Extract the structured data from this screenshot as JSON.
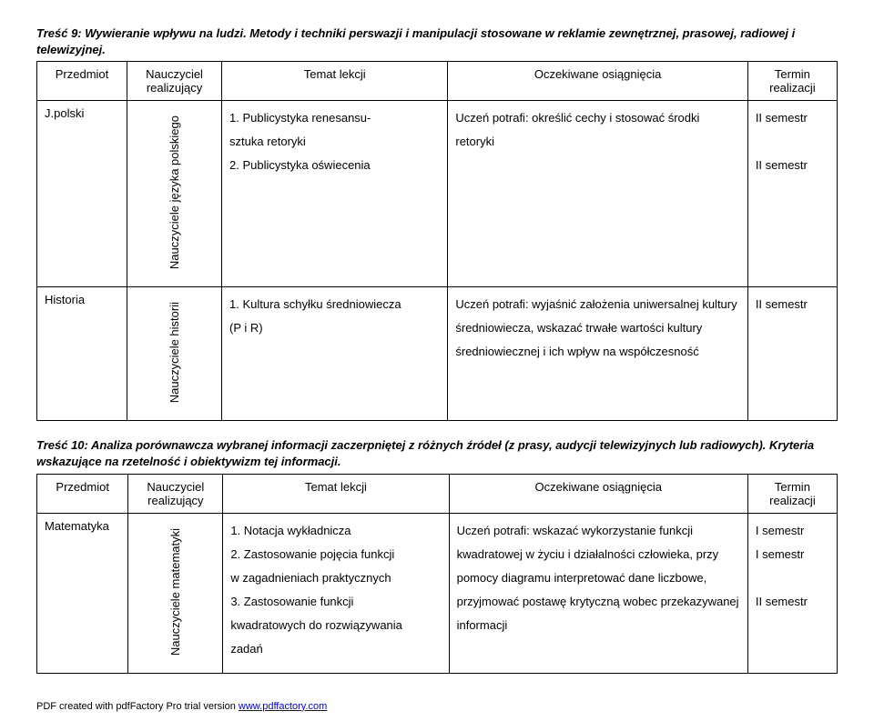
{
  "section9": {
    "title": "Treść 9: Wywieranie wpływu na ludzi. Metody i techniki perswazji i manipulacji stosowane w reklamie zewnętrznej, prasowej, radiowej i telewizyjnej.",
    "headers": {
      "subject": "Przedmiot",
      "teacher": "Nauczyciel realizujący",
      "topic": "Temat lekcji",
      "outcome": "Oczekiwane osiągnięcia",
      "term": "Termin realizacji"
    },
    "rows": [
      {
        "subject": "J.polski",
        "teacher": "Nauczyciele języka polskiego",
        "topic_lines": [
          "1. Publicystyka renesansu-",
          "sztuka retoryki",
          "2. Publicystyka oświecenia"
        ],
        "outcome": "Uczeń potrafi: określić cechy i stosować środki retoryki",
        "term_lines": [
          "II semestr",
          "",
          "II semestr"
        ]
      },
      {
        "subject": "Historia",
        "teacher": "Nauczyciele historii",
        "topic_lines": [
          "1. Kultura schyłku średniowiecza",
          "(P i R)"
        ],
        "outcome_lines": [
          "Uczeń potrafi: wyjaśnić założenia uniwersalnej kultury",
          "średniowiecza, wskazać trwałe wartości kultury",
          "średniowiecznej i ich wpływ na współczesność"
        ],
        "term_lines": [
          "II semestr"
        ]
      }
    ]
  },
  "section10": {
    "title": "Treść 10: Analiza porównawcza wybranej informacji zaczerpniętej z różnych źródeł (z prasy, audycji telewizyjnych lub radiowych). Kryteria wskazujące na rzetelność i obiektywizm tej informacji.",
    "headers": {
      "subject": "Przedmiot",
      "teacher": "Nauczyciel realizujący",
      "topic": "Temat lekcji",
      "outcome": "Oczekiwane osiągnięcia",
      "term": "Termin realizacji"
    },
    "rows": [
      {
        "subject": "Matematyka",
        "teacher": "Nauczyciele matematyki",
        "topic_lines": [
          "1. Notacja wykładnicza",
          "2. Zastosowanie pojęcia funkcji",
          "w zagadnieniach praktycznych",
          "3. Zastosowanie funkcji",
          "kwadratowych do rozwiązywania",
          "zadań"
        ],
        "outcome_lines": [
          "Uczeń potrafi: wskazać wykorzystanie funkcji",
          "kwadratowej w życiu i działalności człowieka, przy",
          "pomocy diagramu interpretować dane liczbowe,",
          "przyjmować postawę krytyczną wobec przekazywanej",
          "informacji"
        ],
        "term_lines": [
          "I semestr",
          "I semestr",
          "",
          "II semestr"
        ]
      }
    ]
  },
  "footer": {
    "prefix": "PDF created with pdfFactory Pro trial version ",
    "link": "www.pdffactory.com"
  }
}
